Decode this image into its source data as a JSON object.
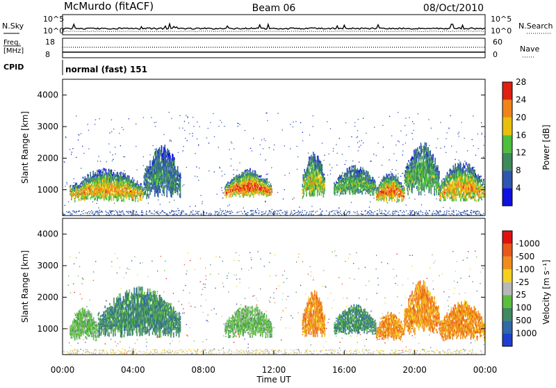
{
  "header": {
    "station": "McMurdo (fitACF)",
    "beam": "Beam 06",
    "date": "08/Oct/2010"
  },
  "top_panels": {
    "nsky_label": "N.Sky",
    "nsky_ticks": [
      "10^5",
      "10^0"
    ],
    "nsearch_label": "N.Search",
    "nsearch_ticks": [
      "10^5",
      "10^0"
    ],
    "freq_label_1": "Freq.",
    "freq_label_2": "[MHz]",
    "freq_ticks": [
      "18",
      "8"
    ],
    "nave_label": "Nave",
    "nave_ticks": [
      "60",
      "0"
    ],
    "cpid_label": "CPID",
    "cpid_value": "normal (fast) 151"
  },
  "chart_data": [
    {
      "type": "heatmap",
      "name": "power",
      "ylabel": "Slant Range [km]",
      "ylim": [
        180,
        4500
      ],
      "yticks": [
        "1000",
        "2000",
        "3000",
        "4000"
      ],
      "colorbar_label": "Power [dB]",
      "colorbar_ticks": [
        "4",
        "8",
        "12",
        "16",
        "20",
        "24",
        "28"
      ],
      "colors": [
        "#1010e0",
        "#2e55b0",
        "#3d8a5a",
        "#4cbf3c",
        "#e8c00a",
        "#f08418",
        "#e02010"
      ],
      "blobs": [
        {
          "t0": 0.4,
          "t1": 4.6,
          "r0": 600,
          "r1": 1600,
          "level": 5
        },
        {
          "t0": 4.6,
          "t1": 6.7,
          "r0": 700,
          "r1": 2300,
          "level": 2
        },
        {
          "t0": 9.2,
          "t1": 11.9,
          "r0": 700,
          "r1": 1600,
          "level": 6
        },
        {
          "t0": 13.6,
          "t1": 14.9,
          "r0": 700,
          "r1": 2100,
          "level": 4
        },
        {
          "t0": 15.4,
          "t1": 17.8,
          "r0": 800,
          "r1": 1700,
          "level": 3
        },
        {
          "t0": 17.8,
          "t1": 19.4,
          "r0": 600,
          "r1": 1500,
          "level": 6
        },
        {
          "t0": 19.4,
          "t1": 21.4,
          "r0": 800,
          "r1": 2400,
          "level": 3
        },
        {
          "t0": 21.4,
          "t1": 24.0,
          "r0": 600,
          "r1": 1800,
          "level": 5
        }
      ]
    },
    {
      "type": "heatmap",
      "name": "velocity",
      "ylabel": "Slant Range [km]",
      "ylim": [
        180,
        4500
      ],
      "yticks": [
        "1000",
        "2000",
        "3000",
        "4000"
      ],
      "colorbar_label": "Velocity [m s⁻¹]",
      "colorbar_ticks": [
        "1000",
        "500",
        "100",
        "25",
        "-25",
        "-100",
        "-500",
        "-1000"
      ],
      "colors": [
        "#1f3fd0",
        "#3068a8",
        "#3f8a60",
        "#5cbe3e",
        "#b8b8b8",
        "#f4d020",
        "#f08c1c",
        "#e85818",
        "#e01010"
      ],
      "blobs": [
        {
          "t0": 0.4,
          "t1": 2.0,
          "r0": 600,
          "r1": 1600,
          "level": 3
        },
        {
          "t0": 2.0,
          "t1": 6.7,
          "r0": 700,
          "r1": 2200,
          "level": 2
        },
        {
          "t0": 9.2,
          "t1": 11.9,
          "r0": 700,
          "r1": 1700,
          "level": 3
        },
        {
          "t0": 13.6,
          "t1": 14.9,
          "r0": 700,
          "r1": 2100,
          "level": 6
        },
        {
          "t0": 15.4,
          "t1": 17.8,
          "r0": 800,
          "r1": 1700,
          "level": 2
        },
        {
          "t0": 17.8,
          "t1": 19.4,
          "r0": 600,
          "r1": 1500,
          "level": 6
        },
        {
          "t0": 19.4,
          "t1": 21.4,
          "r0": 800,
          "r1": 2400,
          "level": 6
        },
        {
          "t0": 21.4,
          "t1": 24.0,
          "r0": 600,
          "r1": 1800,
          "level": 6
        }
      ]
    }
  ],
  "x_axis": {
    "label": "Time UT",
    "ticks": [
      "00:00",
      "04:00",
      "08:00",
      "12:00",
      "16:00",
      "20:00",
      "00:00"
    ],
    "range_hours": [
      0,
      24
    ]
  }
}
